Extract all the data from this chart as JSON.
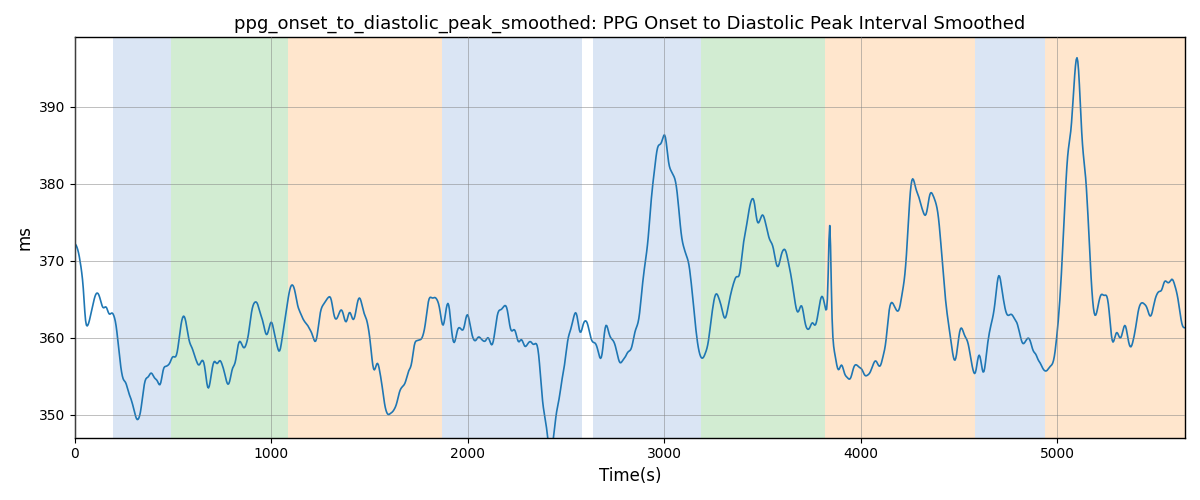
{
  "title": "ppg_onset_to_diastolic_peak_smoothed: PPG Onset to Diastolic Peak Interval Smoothed",
  "xlabel": "Time(s)",
  "ylabel": "ms",
  "line_color": "#1f77b4",
  "line_width": 1.2,
  "ylim": [
    347,
    399
  ],
  "xlim": [
    0,
    5650
  ],
  "yticks": [
    350,
    360,
    370,
    380,
    390
  ],
  "xticks": [
    0,
    1000,
    2000,
    3000,
    4000,
    5000
  ],
  "bg_regions": [
    {
      "xmin": 195,
      "xmax": 490,
      "color": "#aec6e8",
      "alpha": 0.45
    },
    {
      "xmin": 490,
      "xmax": 1085,
      "color": "#90d090",
      "alpha": 0.4
    },
    {
      "xmin": 1085,
      "xmax": 1870,
      "color": "#ffc891",
      "alpha": 0.45
    },
    {
      "xmin": 1870,
      "xmax": 2580,
      "color": "#aec6e8",
      "alpha": 0.45
    },
    {
      "xmin": 2640,
      "xmax": 3115,
      "color": "#aec6e8",
      "alpha": 0.45
    },
    {
      "xmin": 3115,
      "xmax": 3185,
      "color": "#aec6e8",
      "alpha": 0.45
    },
    {
      "xmin": 3185,
      "xmax": 3820,
      "color": "#90d090",
      "alpha": 0.4
    },
    {
      "xmin": 3820,
      "xmax": 4580,
      "color": "#ffc891",
      "alpha": 0.45
    },
    {
      "xmin": 4580,
      "xmax": 4940,
      "color": "#aec6e8",
      "alpha": 0.45
    },
    {
      "xmin": 4940,
      "xmax": 5700,
      "color": "#ffc891",
      "alpha": 0.45
    }
  ],
  "seed": 42
}
